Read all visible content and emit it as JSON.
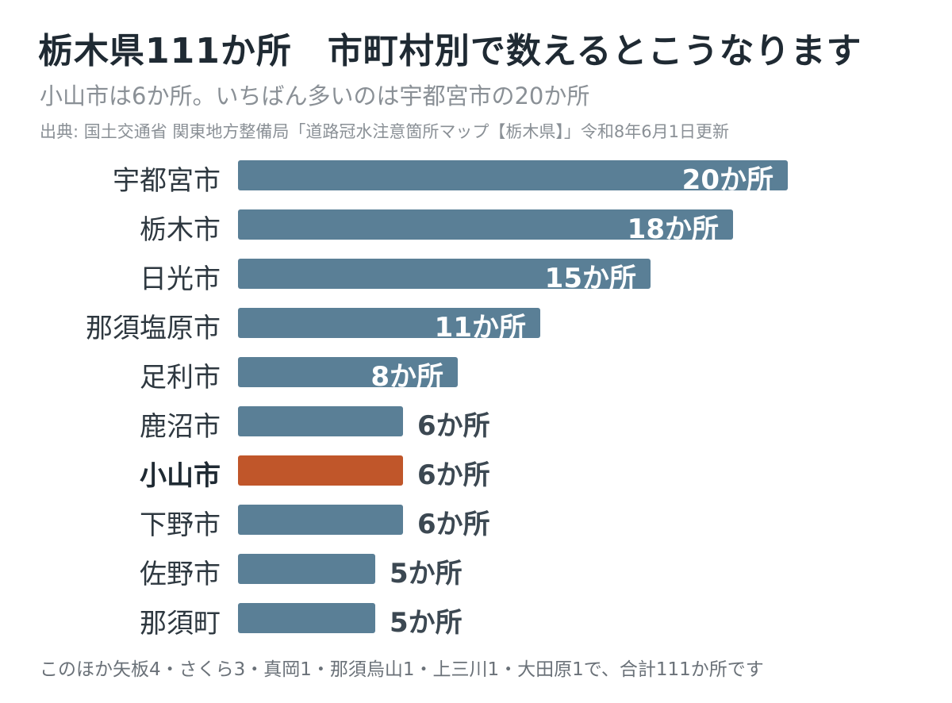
{
  "header": {
    "title": "栃木県111か所　市町村別で数えるとこうなります",
    "subtitle": "小山市は6か所。いちばん多いのは宇都宮市の20か所",
    "source": "出典: 国土交通省 関東地方整備局「道路冠水注意箇所マップ【栃木県】」令和8年6月1日更新"
  },
  "footer": {
    "note": "このほか矢板4・さくら3・真岡1・那須烏山1・上三川1・大田原1で、合計111か所です"
  },
  "colors": {
    "bar": "#5a7f96",
    "highlight": "#c0562a"
  },
  "chart_data": {
    "type": "bar",
    "orientation": "horizontal",
    "categories": [
      "宇都宮市",
      "栃木市",
      "日光市",
      "那須塩原市",
      "足利市",
      "鹿沼市",
      "小山市",
      "下野市",
      "佐野市",
      "那須町"
    ],
    "values": [
      20,
      18,
      15,
      11,
      8,
      6,
      6,
      6,
      5,
      5
    ],
    "value_labels": [
      "20か所",
      "18か所",
      "15か所",
      "11か所",
      "8か所",
      "6か所",
      "6か所",
      "6か所",
      "5か所",
      "5か所"
    ],
    "highlight": "小山市",
    "xlim": [
      0,
      20
    ],
    "grid": false,
    "legend": "none"
  }
}
